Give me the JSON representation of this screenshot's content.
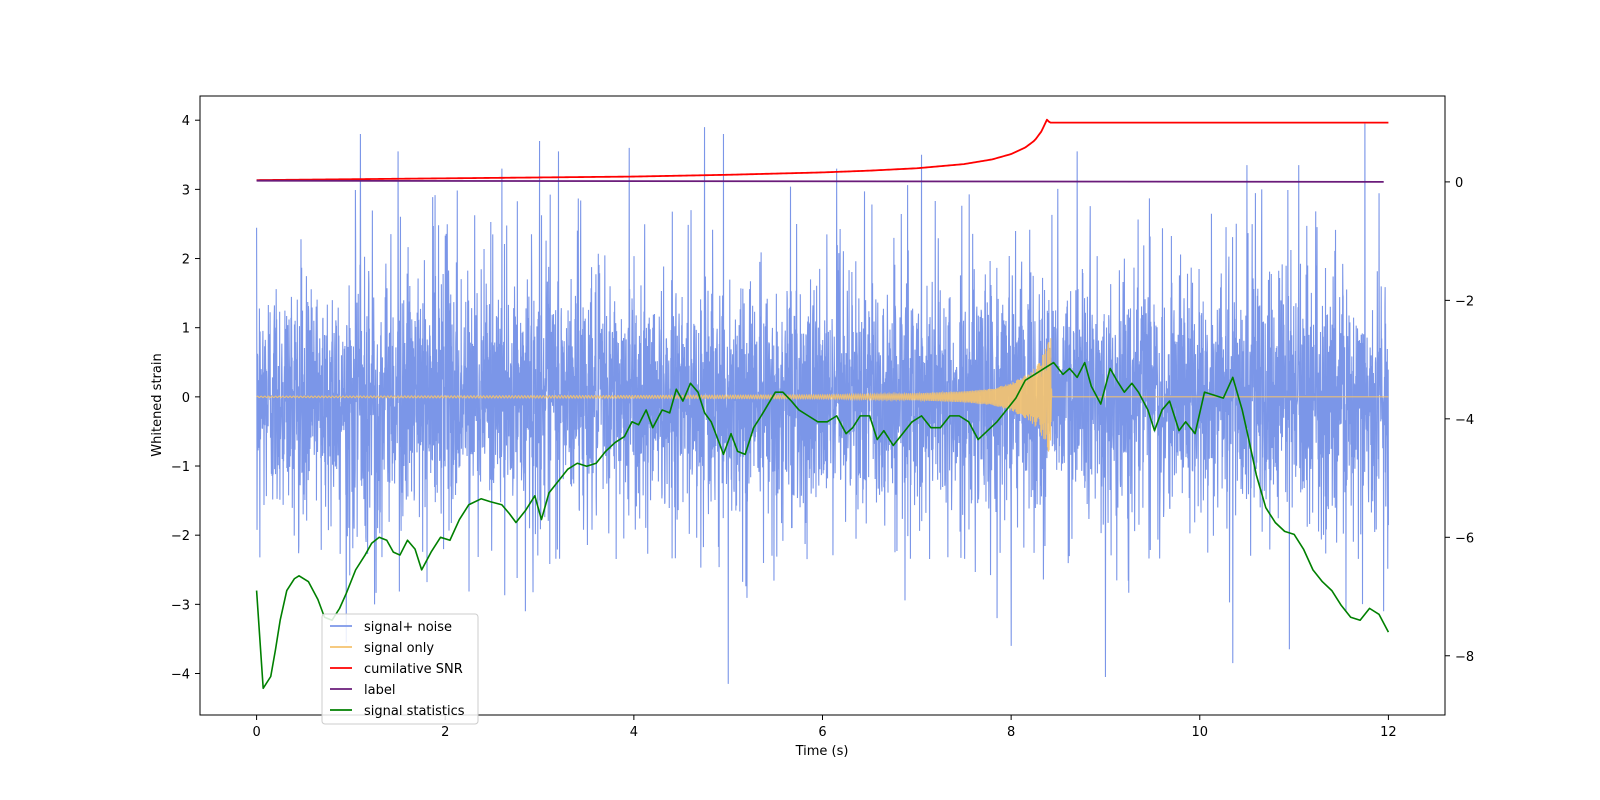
{
  "chart_data": {
    "type": "line",
    "title": "",
    "xlabel": "Time (s)",
    "ylabel_left": "Whitened strain",
    "ylabel_right": "",
    "xlim": [
      -0.6,
      12.6
    ],
    "ylim_left": [
      -4.6,
      4.35
    ],
    "ylim_right": [
      -9.0,
      1.45
    ],
    "xticks": [
      0,
      2,
      4,
      6,
      8,
      10,
      12
    ],
    "yticks_left": [
      -4,
      -3,
      -2,
      -1,
      0,
      1,
      2,
      3,
      4
    ],
    "yticks_right": [
      -8,
      -6,
      -4,
      -2,
      0
    ],
    "grid": false,
    "legend_position": "lower-left",
    "noise": {
      "x_range": [
        0,
        12
      ],
      "typical_min": -2.0,
      "typical_max": 2.3,
      "extreme_min": -4.15,
      "extreme_max": 3.9
    },
    "spikes": {
      "up": [
        [
          1.1,
          3.8
        ],
        [
          1.5,
          3.55
        ],
        [
          2.6,
          3.3
        ],
        [
          3.0,
          3.7
        ],
        [
          3.2,
          3.55
        ],
        [
          3.95,
          3.6
        ],
        [
          4.75,
          3.9
        ],
        [
          4.95,
          3.8
        ],
        [
          6.15,
          3.3
        ],
        [
          7.05,
          3.5
        ],
        [
          8.7,
          3.55
        ],
        [
          11.75,
          3.95
        ],
        [
          10.5,
          3.35
        ],
        [
          11.05,
          3.35
        ]
      ],
      "down": [
        [
          0.95,
          -3.55
        ],
        [
          1.25,
          -3.0
        ],
        [
          2.85,
          -3.1
        ],
        [
          5.0,
          -4.15
        ],
        [
          7.85,
          -3.2
        ],
        [
          8.0,
          -3.6
        ],
        [
          9.0,
          -4.05
        ],
        [
          10.35,
          -3.85
        ],
        [
          10.95,
          -3.65
        ],
        [
          11.55,
          -3.1
        ],
        [
          11.95,
          -3.1
        ]
      ]
    },
    "series": [
      {
        "name": "signal+ noise",
        "color": "#7b96e8",
        "axis": "left"
      },
      {
        "name": "signal only",
        "color": "#f5c36e",
        "axis": "left",
        "envelope": [
          [
            0,
            0.01
          ],
          [
            2,
            0.015
          ],
          [
            4,
            0.02
          ],
          [
            6,
            0.03
          ],
          [
            7,
            0.05
          ],
          [
            7.5,
            0.08
          ],
          [
            7.8,
            0.12
          ],
          [
            8.0,
            0.2
          ],
          [
            8.2,
            0.35
          ],
          [
            8.3,
            0.5
          ],
          [
            8.38,
            0.75
          ],
          [
            8.42,
            0.85
          ],
          [
            8.43,
            0.0
          ],
          [
            12,
            0.0
          ]
        ]
      },
      {
        "name": "cumilative SNR",
        "color": "#ff0000",
        "axis": "right",
        "points": [
          [
            0,
            0.03
          ],
          [
            2,
            0.06
          ],
          [
            4,
            0.09
          ],
          [
            5,
            0.12
          ],
          [
            6,
            0.16
          ],
          [
            6.5,
            0.19
          ],
          [
            7,
            0.23
          ],
          [
            7.5,
            0.3
          ],
          [
            7.8,
            0.38
          ],
          [
            8.0,
            0.47
          ],
          [
            8.15,
            0.58
          ],
          [
            8.25,
            0.7
          ],
          [
            8.32,
            0.85
          ],
          [
            8.38,
            1.05
          ],
          [
            8.41,
            1.0
          ],
          [
            12.0,
            1.0
          ]
        ]
      },
      {
        "name": "label",
        "color": "#6a1b7a",
        "axis": "right",
        "points": [
          [
            0,
            0.02
          ],
          [
            11.95,
            0.0
          ]
        ]
      },
      {
        "name": "signal statistics",
        "color": "#008000",
        "axis": "right",
        "points": [
          [
            0,
            -6.9
          ],
          [
            0.07,
            -8.55
          ],
          [
            0.15,
            -8.35
          ],
          [
            0.2,
            -7.9
          ],
          [
            0.25,
            -7.4
          ],
          [
            0.32,
            -6.9
          ],
          [
            0.4,
            -6.7
          ],
          [
            0.45,
            -6.65
          ],
          [
            0.55,
            -6.75
          ],
          [
            0.65,
            -7.05
          ],
          [
            0.72,
            -7.35
          ],
          [
            0.8,
            -7.4
          ],
          [
            0.88,
            -7.2
          ],
          [
            0.95,
            -6.95
          ],
          [
            1.05,
            -6.55
          ],
          [
            1.15,
            -6.3
          ],
          [
            1.22,
            -6.1
          ],
          [
            1.3,
            -6.0
          ],
          [
            1.38,
            -6.05
          ],
          [
            1.45,
            -6.25
          ],
          [
            1.52,
            -6.3
          ],
          [
            1.6,
            -6.05
          ],
          [
            1.68,
            -6.2
          ],
          [
            1.75,
            -6.55
          ],
          [
            1.85,
            -6.25
          ],
          [
            1.95,
            -6.0
          ],
          [
            2.05,
            -6.05
          ],
          [
            2.15,
            -5.7
          ],
          [
            2.25,
            -5.45
          ],
          [
            2.38,
            -5.35
          ],
          [
            2.48,
            -5.4
          ],
          [
            2.6,
            -5.45
          ],
          [
            2.68,
            -5.6
          ],
          [
            2.75,
            -5.75
          ],
          [
            2.85,
            -5.55
          ],
          [
            2.95,
            -5.3
          ],
          [
            3.02,
            -5.7
          ],
          [
            3.1,
            -5.25
          ],
          [
            3.2,
            -5.05
          ],
          [
            3.3,
            -4.85
          ],
          [
            3.4,
            -4.75
          ],
          [
            3.5,
            -4.8
          ],
          [
            3.6,
            -4.75
          ],
          [
            3.7,
            -4.55
          ],
          [
            3.8,
            -4.4
          ],
          [
            3.9,
            -4.3
          ],
          [
            3.98,
            -4.05
          ],
          [
            4.05,
            -4.1
          ],
          [
            4.13,
            -3.85
          ],
          [
            4.2,
            -4.15
          ],
          [
            4.3,
            -3.85
          ],
          [
            4.38,
            -3.9
          ],
          [
            4.45,
            -3.5
          ],
          [
            4.52,
            -3.7
          ],
          [
            4.6,
            -3.4
          ],
          [
            4.68,
            -3.55
          ],
          [
            4.75,
            -3.9
          ],
          [
            4.82,
            -4.05
          ],
          [
            4.88,
            -4.3
          ],
          [
            4.95,
            -4.6
          ],
          [
            5.03,
            -4.25
          ],
          [
            5.1,
            -4.55
          ],
          [
            5.18,
            -4.6
          ],
          [
            5.27,
            -4.15
          ],
          [
            5.35,
            -3.95
          ],
          [
            5.5,
            -3.55
          ],
          [
            5.58,
            -3.55
          ],
          [
            5.67,
            -3.7
          ],
          [
            5.75,
            -3.85
          ],
          [
            5.85,
            -3.95
          ],
          [
            5.95,
            -4.05
          ],
          [
            6.05,
            -4.05
          ],
          [
            6.15,
            -3.95
          ],
          [
            6.25,
            -4.25
          ],
          [
            6.32,
            -4.15
          ],
          [
            6.4,
            -3.95
          ],
          [
            6.5,
            -3.95
          ],
          [
            6.58,
            -4.35
          ],
          [
            6.65,
            -4.2
          ],
          [
            6.75,
            -4.45
          ],
          [
            6.85,
            -4.25
          ],
          [
            6.95,
            -4.05
          ],
          [
            7.05,
            -3.95
          ],
          [
            7.15,
            -4.15
          ],
          [
            7.25,
            -4.15
          ],
          [
            7.35,
            -3.95
          ],
          [
            7.45,
            -3.95
          ],
          [
            7.55,
            -4.05
          ],
          [
            7.65,
            -4.35
          ],
          [
            7.75,
            -4.2
          ],
          [
            7.85,
            -4.05
          ],
          [
            7.95,
            -3.85
          ],
          [
            8.05,
            -3.65
          ],
          [
            8.15,
            -3.35
          ],
          [
            8.25,
            -3.25
          ],
          [
            8.35,
            -3.15
          ],
          [
            8.45,
            -3.05
          ],
          [
            8.55,
            -3.25
          ],
          [
            8.62,
            -3.15
          ],
          [
            8.7,
            -3.3
          ],
          [
            8.78,
            -3.05
          ],
          [
            8.85,
            -3.45
          ],
          [
            8.95,
            -3.75
          ],
          [
            9.05,
            -3.15
          ],
          [
            9.12,
            -3.35
          ],
          [
            9.2,
            -3.55
          ],
          [
            9.28,
            -3.4
          ],
          [
            9.35,
            -3.55
          ],
          [
            9.45,
            -3.85
          ],
          [
            9.52,
            -4.2
          ],
          [
            9.6,
            -3.85
          ],
          [
            9.68,
            -3.7
          ],
          [
            9.78,
            -4.2
          ],
          [
            9.85,
            -4.05
          ],
          [
            9.95,
            -4.25
          ],
          [
            10.05,
            -3.55
          ],
          [
            10.15,
            -3.6
          ],
          [
            10.25,
            -3.65
          ],
          [
            10.35,
            -3.3
          ],
          [
            10.45,
            -3.85
          ],
          [
            10.52,
            -4.35
          ],
          [
            10.6,
            -4.95
          ],
          [
            10.7,
            -5.5
          ],
          [
            10.8,
            -5.75
          ],
          [
            10.9,
            -5.9
          ],
          [
            11.0,
            -5.95
          ],
          [
            11.1,
            -6.2
          ],
          [
            11.2,
            -6.55
          ],
          [
            11.3,
            -6.75
          ],
          [
            11.4,
            -6.9
          ],
          [
            11.5,
            -7.15
          ],
          [
            11.6,
            -7.35
          ],
          [
            11.7,
            -7.4
          ],
          [
            11.8,
            -7.2
          ],
          [
            11.9,
            -7.3
          ],
          [
            12.0,
            -7.6
          ]
        ]
      }
    ]
  }
}
